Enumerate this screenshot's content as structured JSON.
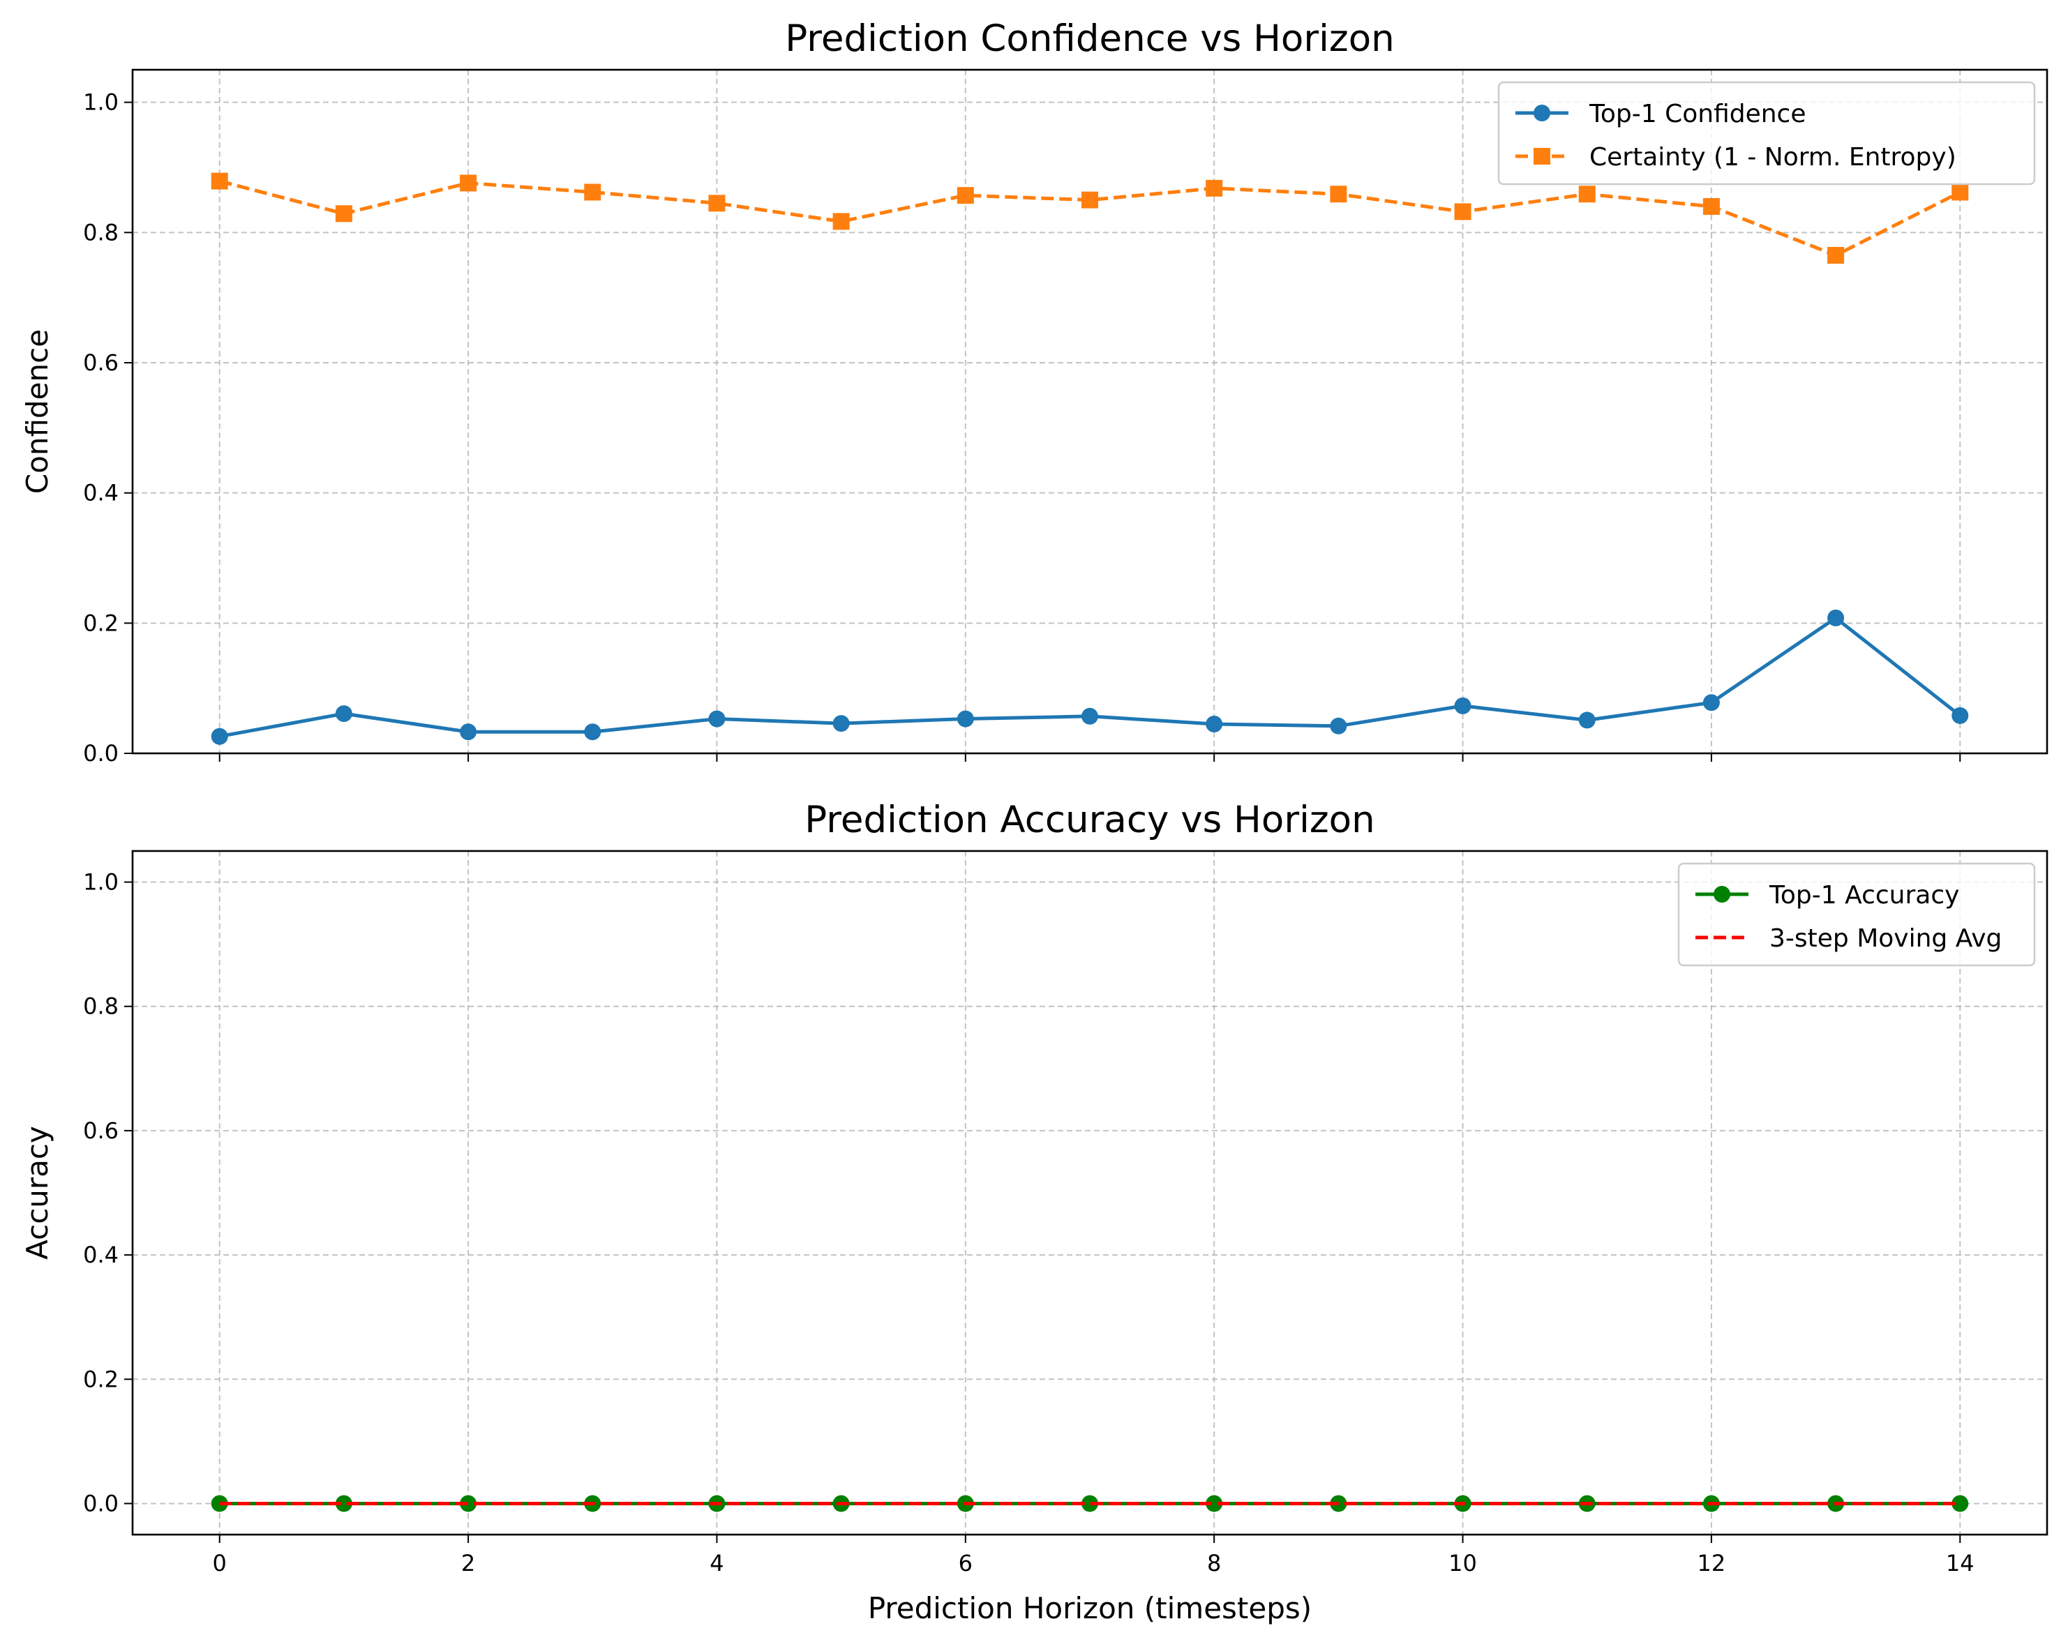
{
  "chart_data": [
    {
      "type": "line",
      "title": "Prediction Confidence vs Horizon",
      "xlabel": "",
      "ylabel": "Confidence",
      "xlim": [
        -0.7,
        14.7
      ],
      "ylim": [
        0,
        1.05
      ],
      "xticks": [
        0,
        2,
        4,
        6,
        8,
        10,
        12,
        14
      ],
      "yticks": [
        0.0,
        0.2,
        0.4,
        0.6,
        0.8,
        1.0
      ],
      "xtick_labels_visible": false,
      "grid": true,
      "legend_position": "upper right",
      "x": [
        0,
        1,
        2,
        3,
        4,
        5,
        6,
        7,
        8,
        9,
        10,
        11,
        12,
        13,
        14
      ],
      "series": [
        {
          "name": "Top-1 Confidence",
          "color": "#1f77b4",
          "line_style": "solid",
          "marker": "circle",
          "values": [
            0.026,
            0.061,
            0.033,
            0.033,
            0.053,
            0.046,
            0.053,
            0.057,
            0.045,
            0.042,
            0.073,
            0.051,
            0.078,
            0.208,
            0.058
          ]
        },
        {
          "name": "Certainty (1 - Norm. Entropy)",
          "color": "#ff7f0e",
          "line_style": "dashed",
          "marker": "square",
          "values": [
            0.879,
            0.829,
            0.876,
            0.862,
            0.845,
            0.817,
            0.857,
            0.85,
            0.868,
            0.859,
            0.832,
            0.859,
            0.84,
            0.765,
            0.862
          ]
        }
      ]
    },
    {
      "type": "line",
      "title": "Prediction Accuracy vs Horizon",
      "xlabel": "Prediction Horizon (timesteps)",
      "ylabel": "Accuracy",
      "xlim": [
        -0.7,
        14.7
      ],
      "ylim": [
        -0.05,
        1.05
      ],
      "xticks": [
        0,
        2,
        4,
        6,
        8,
        10,
        12,
        14
      ],
      "yticks": [
        0.0,
        0.2,
        0.4,
        0.6,
        0.8,
        1.0
      ],
      "xtick_labels_visible": true,
      "grid": true,
      "legend_position": "upper right",
      "x": [
        0,
        1,
        2,
        3,
        4,
        5,
        6,
        7,
        8,
        9,
        10,
        11,
        12,
        13,
        14
      ],
      "series": [
        {
          "name": "Top-1 Accuracy",
          "color": "#008000",
          "line_style": "solid",
          "marker": "circle",
          "values": [
            0,
            0,
            0,
            0,
            0,
            0,
            0,
            0,
            0,
            0,
            0,
            0,
            0,
            0,
            0
          ]
        },
        {
          "name": "3-step Moving Avg",
          "color": "#ff0000",
          "line_style": "dashed",
          "marker": "none",
          "values": [
            0,
            0,
            0,
            0,
            0,
            0,
            0,
            0,
            0,
            0,
            0,
            0,
            0,
            0,
            0
          ]
        }
      ]
    }
  ]
}
